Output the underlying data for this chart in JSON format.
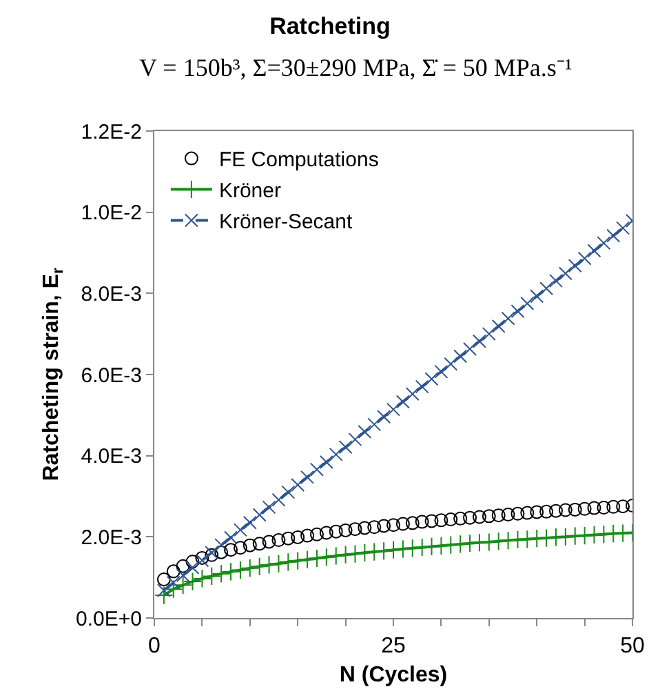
{
  "chart_data": {
    "type": "scatter",
    "title": "Ratcheting",
    "subtitle": "V = 150b³, Σ=30±290 MPa, Σ̇ = 50 MPa.s⁻¹",
    "xlabel": "N (Cycles)",
    "ylabel": "Ratcheting strain, E$_{r}$",
    "x": [
      1,
      2,
      3,
      4,
      5,
      6,
      7,
      8,
      9,
      10,
      11,
      12,
      13,
      14,
      15,
      16,
      17,
      18,
      19,
      20,
      21,
      22,
      23,
      24,
      25,
      26,
      27,
      28,
      29,
      30,
      31,
      32,
      33,
      34,
      35,
      36,
      37,
      38,
      39,
      40,
      41,
      42,
      43,
      44,
      45,
      46,
      47,
      48,
      49,
      50
    ],
    "series": [
      {
        "name": "FE Computations",
        "marker": "circle",
        "color": "#000000",
        "values": [
          0.00095,
          0.00115,
          0.00128,
          0.00139,
          0.00148,
          0.00155,
          0.00162,
          0.00168,
          0.00173,
          0.00179,
          0.00183,
          0.00188,
          0.00192,
          0.00196,
          0.00199,
          0.00203,
          0.00206,
          0.0021,
          0.00213,
          0.00216,
          0.00219,
          0.00222,
          0.00224,
          0.00227,
          0.00229,
          0.00232,
          0.00234,
          0.00237,
          0.00239,
          0.00241,
          0.00243,
          0.00245,
          0.00247,
          0.00249,
          0.00251,
          0.00253,
          0.00255,
          0.00257,
          0.00259,
          0.00261,
          0.00262,
          0.00264,
          0.00266,
          0.00267,
          0.00269,
          0.00271,
          0.00272,
          0.00274,
          0.00275,
          0.00277
        ]
      },
      {
        "name": "Kröner",
        "type": "line",
        "marker": "cross",
        "line_style": "solid",
        "color": "#1a8c1a",
        "values": [
          0.00056,
          0.00071,
          0.00081,
          0.0009,
          0.00097,
          0.00103,
          0.00109,
          0.00114,
          0.00118,
          0.00123,
          0.00127,
          0.00131,
          0.00134,
          0.00138,
          0.00141,
          0.00144,
          0.00147,
          0.0015,
          0.00153,
          0.00156,
          0.00158,
          0.00161,
          0.00163,
          0.00165,
          0.00168,
          0.0017,
          0.00172,
          0.00174,
          0.00176,
          0.00178,
          0.0018,
          0.00182,
          0.00184,
          0.00186,
          0.00187,
          0.00189,
          0.00191,
          0.00193,
          0.00194,
          0.00196,
          0.00197,
          0.00199,
          0.002,
          0.00202,
          0.00203,
          0.00205,
          0.00206,
          0.00208,
          0.00209,
          0.0021
        ]
      },
      {
        "name": "Kröner-Secant",
        "type": "line",
        "marker": "x",
        "line_style": "dashed",
        "color": "#2e558f",
        "values": [
          0.00068,
          0.00087,
          0.00105,
          0.00124,
          0.00142,
          0.00161,
          0.0018,
          0.00198,
          0.00217,
          0.00235,
          0.00254,
          0.00273,
          0.00291,
          0.0031,
          0.00328,
          0.00347,
          0.00366,
          0.00384,
          0.00403,
          0.00421,
          0.0044,
          0.00459,
          0.00477,
          0.00496,
          0.00514,
          0.00533,
          0.00552,
          0.0057,
          0.00589,
          0.00607,
          0.00626,
          0.00645,
          0.00663,
          0.00682,
          0.007,
          0.00719,
          0.00738,
          0.00756,
          0.00775,
          0.00793,
          0.00812,
          0.00831,
          0.00849,
          0.00868,
          0.00886,
          0.00905,
          0.00924,
          0.00942,
          0.00961,
          0.00979
        ]
      }
    ],
    "xlim": [
      0,
      50
    ],
    "xticks": [
      0,
      {
        "value": 5,
        "label": null
      },
      {
        "value": 10,
        "label": null
      },
      {
        "value": 15,
        "label": null
      },
      {
        "value": 20,
        "label": null
      },
      25,
      {
        "value": 30,
        "label": null
      },
      {
        "value": 35,
        "label": null
      },
      {
        "value": 40,
        "label": null
      },
      {
        "value": 45,
        "label": null
      },
      50
    ],
    "ylim": [
      0,
      0.012
    ],
    "yticks": [
      {
        "value": 0,
        "label": "0.0E+0"
      },
      {
        "value": 0.002,
        "label": "2.0E-3"
      },
      {
        "value": 0.004,
        "label": "4.0E-3"
      },
      {
        "value": 0.006,
        "label": "6.0E-3"
      },
      {
        "value": 0.008,
        "label": "8.0E-3"
      },
      {
        "value": 0.01,
        "label": "1.0E-2"
      },
      {
        "value": 0.012,
        "label": "1.2E-2"
      }
    ],
    "grid": false,
    "legend": "top left"
  }
}
